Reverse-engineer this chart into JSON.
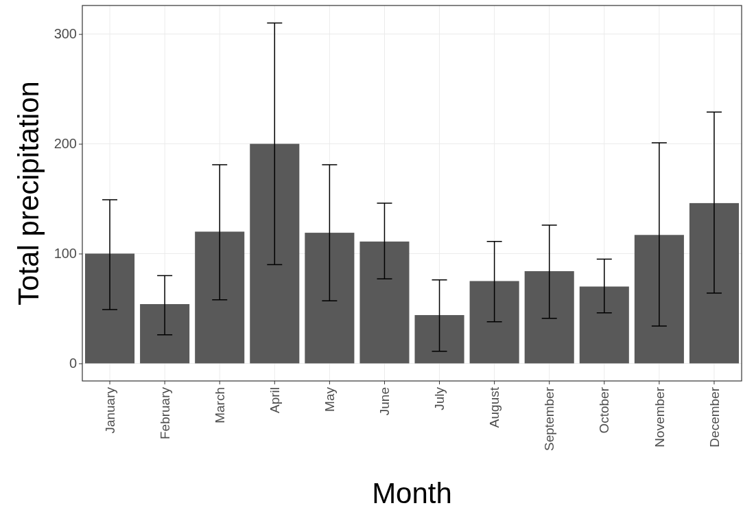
{
  "chart_data": {
    "type": "bar",
    "xlabel": "Month",
    "ylabel": "Total precipitation",
    "categories": [
      "January",
      "February",
      "March",
      "April",
      "May",
      "June",
      "July",
      "August",
      "September",
      "October",
      "November",
      "December"
    ],
    "values": [
      100,
      54,
      120,
      200,
      119,
      111,
      44,
      75,
      84,
      70,
      117,
      146
    ],
    "errors": [
      [
        49,
        149
      ],
      [
        26,
        80
      ],
      [
        58,
        181
      ],
      [
        90,
        310
      ],
      [
        57,
        181
      ],
      [
        77,
        146
      ],
      [
        11,
        76
      ],
      [
        38,
        111
      ],
      [
        41,
        126
      ],
      [
        46,
        95
      ],
      [
        34,
        201
      ],
      [
        64,
        229
      ]
    ],
    "color": "#595959",
    "ylim": [
      -16,
      326
    ],
    "yticks": [
      0,
      100,
      200,
      300
    ],
    "grid": true
  }
}
